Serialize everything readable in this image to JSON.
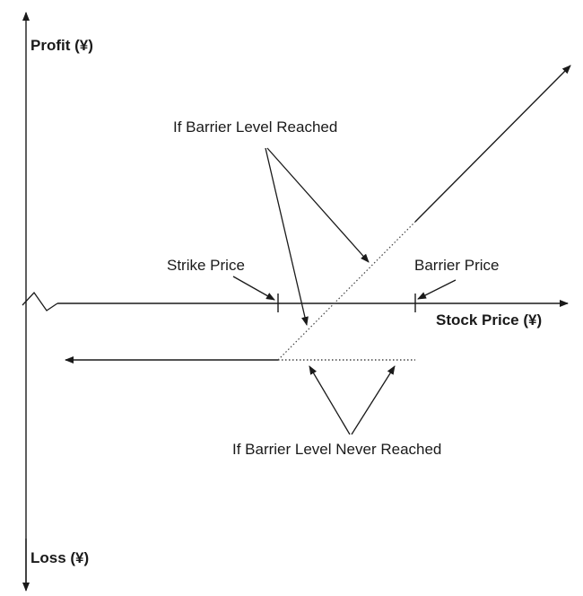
{
  "labels": {
    "profit_axis": "Profit (¥)",
    "loss_axis": "Loss (¥)",
    "stock_axis": "Stock Price (¥)",
    "strike_price": "Strike Price",
    "barrier_price": "Barrier Price",
    "barrier_reached": "If Barrier Level Reached",
    "barrier_never_reached": "If Barrier Level Never Reached"
  },
  "colors": {
    "line": "#1a1a1a",
    "dotted": "#444444"
  }
}
